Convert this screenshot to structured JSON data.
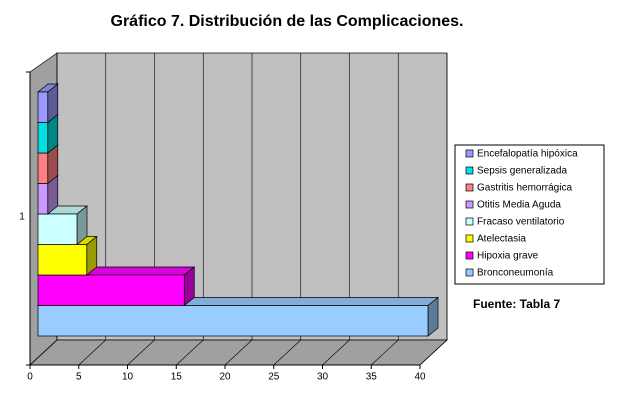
{
  "chart_data": {
    "type": "bar",
    "title": "Gráfico 7. Distribución de las Complicaciones.",
    "categories": [
      "1"
    ],
    "series": [
      {
        "name": "Bronconeumonía",
        "color": "#99ccff",
        "values": [
          40
        ]
      },
      {
        "name": "Hipoxia grave",
        "color": "#ff00ff",
        "values": [
          15
        ]
      },
      {
        "name": "Atelectasia",
        "color": "#ffff00",
        "values": [
          5
        ]
      },
      {
        "name": "Fracaso ventilatorio",
        "color": "#ccffff",
        "values": [
          4
        ]
      },
      {
        "name": "Otitis Media Aguda",
        "color": "#cc99ff",
        "values": [
          1
        ]
      },
      {
        "name": "Gastritis hemorrágica",
        "color": "#ff8080",
        "values": [
          1
        ]
      },
      {
        "name": "Sepsis generalizada",
        "color": "#00e0e0",
        "values": [
          1
        ]
      },
      {
        "name": "Encefalopatía hipóxica",
        "color": "#9999ff",
        "values": [
          1
        ]
      }
    ],
    "xlim": [
      0,
      40
    ],
    "xticks": [
      0,
      5,
      10,
      15,
      20,
      25,
      30,
      35,
      40
    ],
    "grid": true,
    "legend": "right",
    "annotation": "Fuente: Tabla 7"
  }
}
